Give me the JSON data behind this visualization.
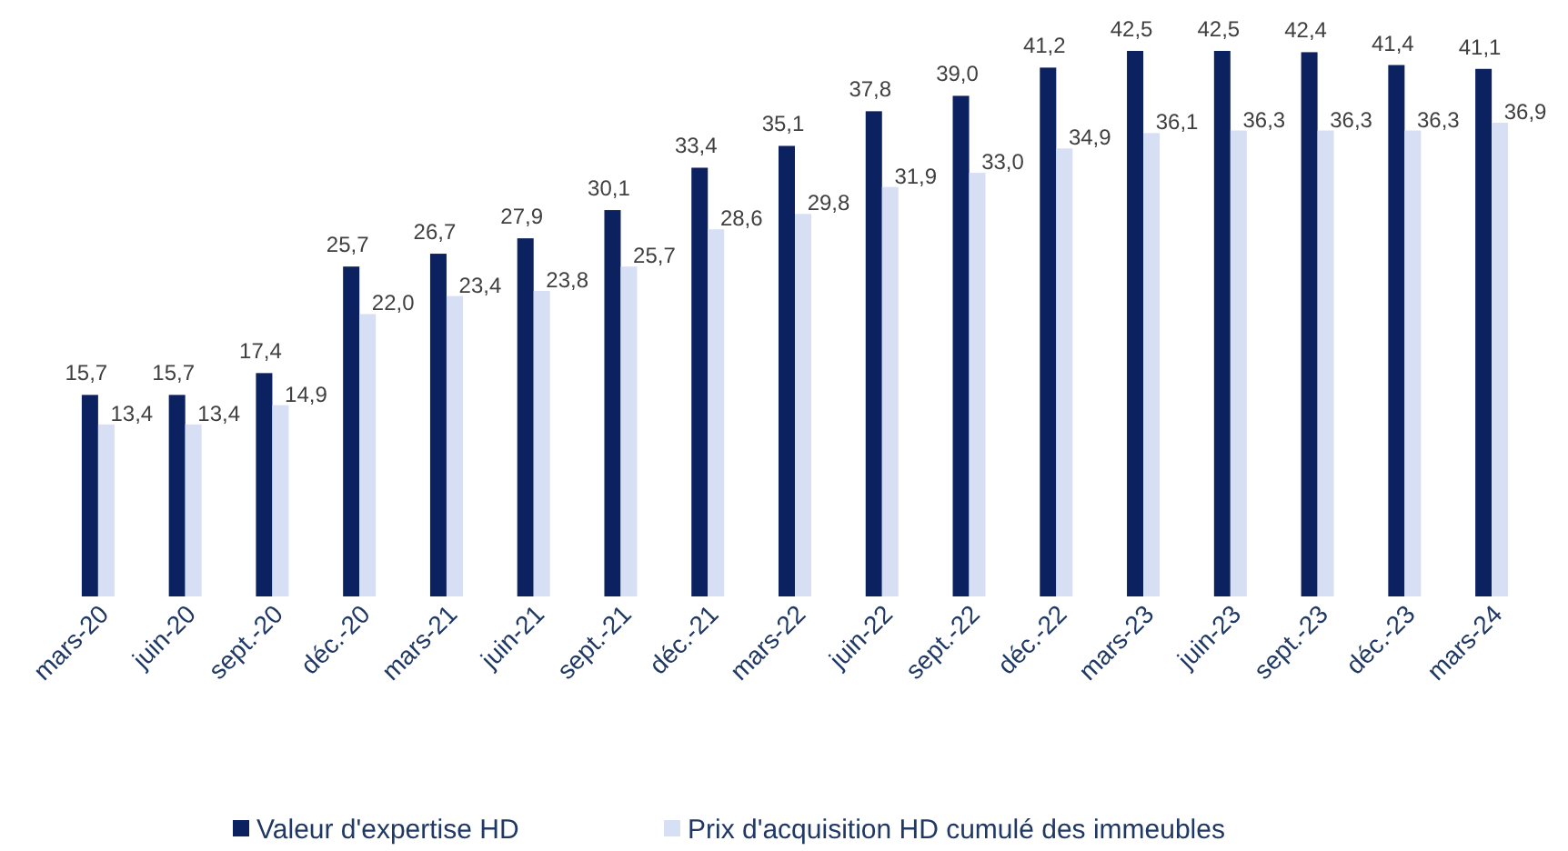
{
  "chart_data": {
    "type": "bar",
    "categories": [
      "mars-20",
      "juin-20",
      "sept.-20",
      "déc.-20",
      "mars-21",
      "juin-21",
      "sept.-21",
      "déc.-21",
      "mars-22",
      "juin-22",
      "sept.-22",
      "déc.-22",
      "mars-23",
      "juin-23",
      "sept.-23",
      "déc.-23",
      "mars-24"
    ],
    "series": [
      {
        "name": "Valeur d'expertise HD",
        "color": "#0c2160",
        "values": [
          15.7,
          15.7,
          17.4,
          25.7,
          26.7,
          27.9,
          30.1,
          33.4,
          35.1,
          37.8,
          39.0,
          41.2,
          42.5,
          42.5,
          42.4,
          41.4,
          41.1
        ],
        "value_labels": [
          "15,7",
          "15,7",
          "17,4",
          "25,7",
          "26,7",
          "27,9",
          "30,1",
          "33,4",
          "35,1",
          "37,8",
          "39,0",
          "41,2",
          "42,5",
          "42,5",
          "42,4",
          "41,4",
          "41,1"
        ]
      },
      {
        "name": "Prix d'acquisition HD cumulé des immeubles",
        "color": "#d6dff3",
        "values": [
          13.4,
          13.4,
          14.9,
          22.0,
          23.4,
          23.8,
          25.7,
          28.6,
          29.8,
          31.9,
          33.0,
          34.9,
          36.1,
          36.3,
          36.3,
          36.3,
          36.9
        ],
        "value_labels": [
          "13,4",
          "13,4",
          "14,9",
          "22,0",
          "23,4",
          "23,8",
          "25,7",
          "28,6",
          "29,8",
          "31,9",
          "33,0",
          "34,9",
          "36,1",
          "36,3",
          "36,3",
          "36,3",
          "36,9"
        ]
      }
    ],
    "legend": "bottom"
  }
}
